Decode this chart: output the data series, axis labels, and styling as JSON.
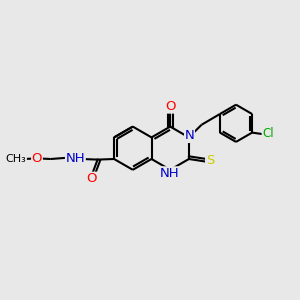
{
  "bg_color": "#e8e8e8",
  "bond_color": "#000000",
  "bond_width": 1.5,
  "atom_colors": {
    "O": "#ff0000",
    "N": "#0000cc",
    "S": "#cccc00",
    "Cl": "#00aa00",
    "NH": "#0000cc",
    "C": "#000000"
  },
  "font_size": 8.5
}
